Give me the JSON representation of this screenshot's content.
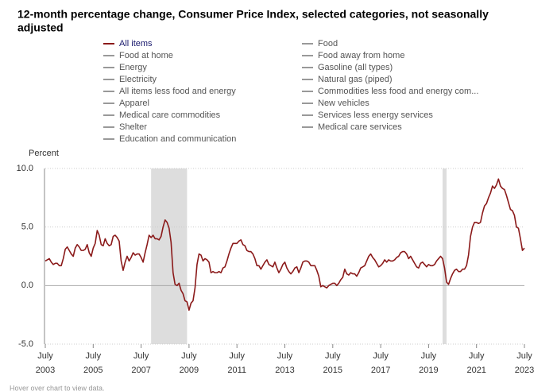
{
  "chart_data": {
    "type": "line",
    "title": [
      "12-month percentage change, Consumer Price Index, selected categories, not seasonally",
      "adjusted"
    ],
    "y_label": "Percent",
    "note": "Hover over chart to view data.",
    "x": [
      "2003-07",
      "2003-08",
      "2003-09",
      "2003-10",
      "2003-11",
      "2003-12",
      "2004-01",
      "2004-02",
      "2004-03",
      "2004-04",
      "2004-05",
      "2004-06",
      "2004-07",
      "2004-08",
      "2004-09",
      "2004-10",
      "2004-11",
      "2004-12",
      "2005-01",
      "2005-02",
      "2005-03",
      "2005-04",
      "2005-05",
      "2005-06",
      "2005-07",
      "2005-08",
      "2005-09",
      "2005-10",
      "2005-11",
      "2005-12",
      "2006-01",
      "2006-02",
      "2006-03",
      "2006-04",
      "2006-05",
      "2006-06",
      "2006-07",
      "2006-08",
      "2006-09",
      "2006-10",
      "2006-11",
      "2006-12",
      "2007-01",
      "2007-02",
      "2007-03",
      "2007-04",
      "2007-05",
      "2007-06",
      "2007-07",
      "2007-08",
      "2007-09",
      "2007-10",
      "2007-11",
      "2007-12",
      "2008-01",
      "2008-02",
      "2008-03",
      "2008-04",
      "2008-05",
      "2008-06",
      "2008-07",
      "2008-08",
      "2008-09",
      "2008-10",
      "2008-11",
      "2008-12",
      "2009-01",
      "2009-02",
      "2009-03",
      "2009-04",
      "2009-05",
      "2009-06",
      "2009-07",
      "2009-08",
      "2009-09",
      "2009-10",
      "2009-11",
      "2009-12",
      "2010-01",
      "2010-02",
      "2010-03",
      "2010-04",
      "2010-05",
      "2010-06",
      "2010-07",
      "2010-08",
      "2010-09",
      "2010-10",
      "2010-11",
      "2010-12",
      "2011-01",
      "2011-02",
      "2011-03",
      "2011-04",
      "2011-05",
      "2011-06",
      "2011-07",
      "2011-08",
      "2011-09",
      "2011-10",
      "2011-11",
      "2011-12",
      "2012-01",
      "2012-02",
      "2012-03",
      "2012-04",
      "2012-05",
      "2012-06",
      "2012-07",
      "2012-08",
      "2012-09",
      "2012-10",
      "2012-11",
      "2012-12",
      "2013-01",
      "2013-02",
      "2013-03",
      "2013-04",
      "2013-05",
      "2013-06",
      "2013-07",
      "2013-08",
      "2013-09",
      "2013-10",
      "2013-11",
      "2013-12",
      "2014-01",
      "2014-02",
      "2014-03",
      "2014-04",
      "2014-05",
      "2014-06",
      "2014-07",
      "2014-08",
      "2014-09",
      "2014-10",
      "2014-11",
      "2014-12",
      "2015-01",
      "2015-02",
      "2015-03",
      "2015-04",
      "2015-05",
      "2015-06",
      "2015-07",
      "2015-08",
      "2015-09",
      "2015-10",
      "2015-11",
      "2015-12",
      "2016-01",
      "2016-02",
      "2016-03",
      "2016-04",
      "2016-05",
      "2016-06",
      "2016-07",
      "2016-08",
      "2016-09",
      "2016-10",
      "2016-11",
      "2016-12",
      "2017-01",
      "2017-02",
      "2017-03",
      "2017-04",
      "2017-05",
      "2017-06",
      "2017-07",
      "2017-08",
      "2017-09",
      "2017-10",
      "2017-11",
      "2017-12",
      "2018-01",
      "2018-02",
      "2018-03",
      "2018-04",
      "2018-05",
      "2018-06",
      "2018-07",
      "2018-08",
      "2018-09",
      "2018-10",
      "2018-11",
      "2018-12",
      "2019-01",
      "2019-02",
      "2019-03",
      "2019-04",
      "2019-05",
      "2019-06",
      "2019-07",
      "2019-08",
      "2019-09",
      "2019-10",
      "2019-11",
      "2019-12",
      "2020-01",
      "2020-02",
      "2020-03",
      "2020-04",
      "2020-05",
      "2020-06",
      "2020-07",
      "2020-08",
      "2020-09",
      "2020-10",
      "2020-11",
      "2020-12",
      "2021-01",
      "2021-02",
      "2021-03",
      "2021-04",
      "2021-05",
      "2021-06",
      "2021-07",
      "2021-08",
      "2021-09",
      "2021-10",
      "2021-11",
      "2021-12",
      "2022-01",
      "2022-02",
      "2022-03",
      "2022-04",
      "2022-05",
      "2022-06",
      "2022-07",
      "2022-08",
      "2022-09",
      "2022-10",
      "2022-11",
      "2022-12",
      "2023-01",
      "2023-02",
      "2023-03",
      "2023-04",
      "2023-05",
      "2023-06",
      "2023-07"
    ],
    "series": [
      {
        "name": "All items",
        "color": "#8b1a1a",
        "values": [
          2.1,
          2.2,
          2.3,
          2.0,
          1.8,
          1.9,
          1.9,
          1.7,
          1.7,
          2.3,
          3.1,
          3.3,
          3.0,
          2.7,
          2.5,
          3.2,
          3.5,
          3.3,
          3.0,
          3.0,
          3.1,
          3.5,
          2.8,
          2.5,
          3.2,
          3.6,
          4.7,
          4.3,
          3.5,
          3.4,
          4.0,
          3.6,
          3.4,
          3.5,
          4.2,
          4.3,
          4.1,
          3.8,
          2.1,
          1.3,
          2.0,
          2.5,
          2.1,
          2.4,
          2.8,
          2.6,
          2.7,
          2.7,
          2.4,
          2.0,
          2.8,
          3.5,
          4.3,
          4.1,
          4.3,
          4.0,
          4.0,
          3.9,
          4.2,
          5.0,
          5.6,
          5.4,
          4.9,
          3.7,
          1.1,
          0.1,
          0.0,
          0.2,
          -0.4,
          -0.7,
          -1.3,
          -1.4,
          -2.1,
          -1.5,
          -1.3,
          -0.2,
          1.8,
          2.7,
          2.6,
          2.1,
          2.3,
          2.2,
          2.0,
          1.1,
          1.2,
          1.1,
          1.1,
          1.2,
          1.1,
          1.5,
          1.6,
          2.1,
          2.7,
          3.2,
          3.6,
          3.6,
          3.6,
          3.8,
          3.9,
          3.5,
          3.4,
          3.0,
          2.9,
          2.9,
          2.7,
          2.3,
          1.7,
          1.7,
          1.4,
          1.7,
          2.0,
          2.2,
          1.8,
          1.7,
          1.6,
          2.0,
          1.5,
          1.1,
          1.4,
          1.8,
          2.0,
          1.5,
          1.2,
          1.0,
          1.2,
          1.5,
          1.6,
          1.1,
          1.5,
          2.0,
          2.1,
          2.1,
          2.0,
          1.7,
          1.7,
          1.7,
          1.3,
          0.8,
          -0.1,
          0.0,
          -0.1,
          -0.2,
          0.0,
          0.1,
          0.2,
          0.2,
          0.0,
          0.2,
          0.5,
          0.7,
          1.4,
          1.0,
          0.9,
          1.1,
          1.0,
          1.0,
          0.8,
          1.1,
          1.5,
          1.6,
          1.7,
          2.1,
          2.5,
          2.7,
          2.4,
          2.2,
          1.9,
          1.6,
          1.7,
          1.9,
          2.2,
          2.0,
          2.2,
          2.1,
          2.1,
          2.2,
          2.4,
          2.5,
          2.8,
          2.9,
          2.9,
          2.7,
          2.3,
          2.5,
          2.2,
          1.9,
          1.6,
          1.5,
          1.9,
          2.0,
          1.8,
          1.6,
          1.8,
          1.7,
          1.7,
          1.8,
          2.1,
          2.3,
          2.5,
          2.3,
          1.5,
          0.3,
          0.1,
          0.6,
          1.0,
          1.3,
          1.4,
          1.2,
          1.2,
          1.4,
          1.4,
          1.7,
          2.6,
          4.2,
          5.0,
          5.4,
          5.4,
          5.3,
          5.4,
          6.2,
          6.8,
          7.0,
          7.5,
          7.9,
          8.5,
          8.3,
          8.6,
          9.1,
          8.5,
          8.3,
          8.2,
          7.7,
          7.1,
          6.5,
          6.4,
          6.0,
          5.0,
          4.9,
          4.0,
          3.0,
          3.2
        ]
      },
      {
        "name": "Food",
        "color": "#999999"
      },
      {
        "name": "Food at home",
        "color": "#999999"
      },
      {
        "name": "Food away from home",
        "color": "#999999"
      },
      {
        "name": "Energy",
        "color": "#999999"
      },
      {
        "name": "Gasoline (all types)",
        "color": "#999999"
      },
      {
        "name": "Electricity",
        "color": "#999999"
      },
      {
        "name": "Natural gas (piped)",
        "color": "#999999"
      },
      {
        "name": "All items less food and energy",
        "color": "#999999"
      },
      {
        "name": "Commodities less food and energy com...",
        "color": "#999999"
      },
      {
        "name": "Apparel",
        "color": "#999999"
      },
      {
        "name": "New vehicles",
        "color": "#999999"
      },
      {
        "name": "Medical care commodities",
        "color": "#999999"
      },
      {
        "name": "Services less energy services",
        "color": "#999999"
      },
      {
        "name": "Shelter",
        "color": "#999999"
      },
      {
        "name": "Medical care services",
        "color": "#999999"
      },
      {
        "name": "Education and communication",
        "color": "#999999"
      }
    ],
    "shaded": [
      {
        "start": "2007-12",
        "end": "2009-06"
      },
      {
        "start": "2020-02",
        "end": "2020-04"
      }
    ],
    "shade_color": "#dddddd",
    "ylim": [
      -5,
      10
    ],
    "yticks": [
      {
        "value": -5,
        "label": "-5.0"
      },
      {
        "value": 0,
        "label": "0.0"
      },
      {
        "value": 5,
        "label": "5.0"
      },
      {
        "value": 10,
        "label": "10.0"
      }
    ],
    "xlim": [
      "2003-07",
      "2023-07"
    ],
    "xticks": [
      {
        "value": "2003-07",
        "label": [
          "July",
          "2003"
        ]
      },
      {
        "value": "2005-07",
        "label": [
          "July",
          "2005"
        ]
      },
      {
        "value": "2007-07",
        "label": [
          "July",
          "2007"
        ]
      },
      {
        "value": "2009-07",
        "label": [
          "July",
          "2009"
        ]
      },
      {
        "value": "2011-07",
        "label": [
          "July",
          "2011"
        ]
      },
      {
        "value": "2013-07",
        "label": [
          "July",
          "2013"
        ]
      },
      {
        "value": "2015-07",
        "label": [
          "July",
          "2015"
        ]
      },
      {
        "value": "2017-07",
        "label": [
          "July",
          "2017"
        ]
      },
      {
        "value": "2019-07",
        "label": [
          "July",
          "2019"
        ]
      },
      {
        "value": "2021-07",
        "label": [
          "July",
          "2021"
        ]
      },
      {
        "value": "2023-07",
        "label": [
          "July",
          "2023"
        ]
      }
    ],
    "grid": true
  }
}
